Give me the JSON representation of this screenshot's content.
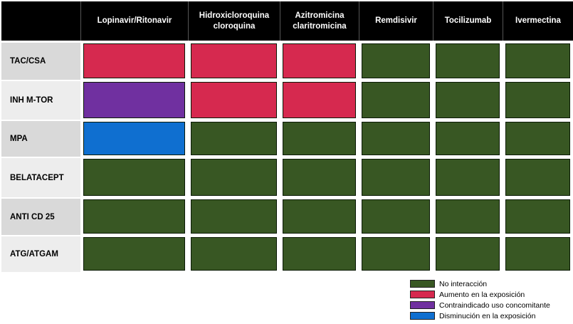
{
  "colors": {
    "none": "#385723",
    "increase": "#d6294f",
    "contra": "#7030a0",
    "decrease": "#0f6fd0",
    "row_label_bg": "#d9d9d9",
    "row_label_bg_alt": "#ededed"
  },
  "headers": [
    [
      "Lopinavir/Ritonavir"
    ],
    [
      "Hidroxicloroquina",
      "cloroquina"
    ],
    [
      "Azitromicina",
      "claritromicina"
    ],
    [
      "Remdisivir"
    ],
    [
      "Tocilizumab"
    ],
    [
      "Ivermectina"
    ]
  ],
  "rows": [
    {
      "label": "TAC/CSA",
      "cells": [
        "increase",
        "increase",
        "increase",
        "none",
        "none",
        "none"
      ]
    },
    {
      "label": "INH M-TOR",
      "cells": [
        "contra",
        "increase",
        "increase",
        "none",
        "none",
        "none"
      ]
    },
    {
      "label": "MPA",
      "cells": [
        "decrease",
        "none",
        "none",
        "none",
        "none",
        "none"
      ]
    },
    {
      "label": "BELATACEPT",
      "cells": [
        "none",
        "none",
        "none",
        "none",
        "none",
        "none"
      ]
    },
    {
      "label": "ANTI CD 25",
      "cells": [
        "none",
        "none",
        "none",
        "none",
        "none",
        "none"
      ]
    },
    {
      "label": "ATG/ATGAM",
      "cells": [
        "none",
        "none",
        "none",
        "none",
        "none",
        "none"
      ]
    }
  ],
  "legend": [
    {
      "key": "none",
      "label": "No interacción"
    },
    {
      "key": "increase",
      "label": "Aumento en la exposición"
    },
    {
      "key": "contra",
      "label": "Contraindicado uso concomitante"
    },
    {
      "key": "decrease",
      "label": "Disminución en la exposición"
    }
  ]
}
